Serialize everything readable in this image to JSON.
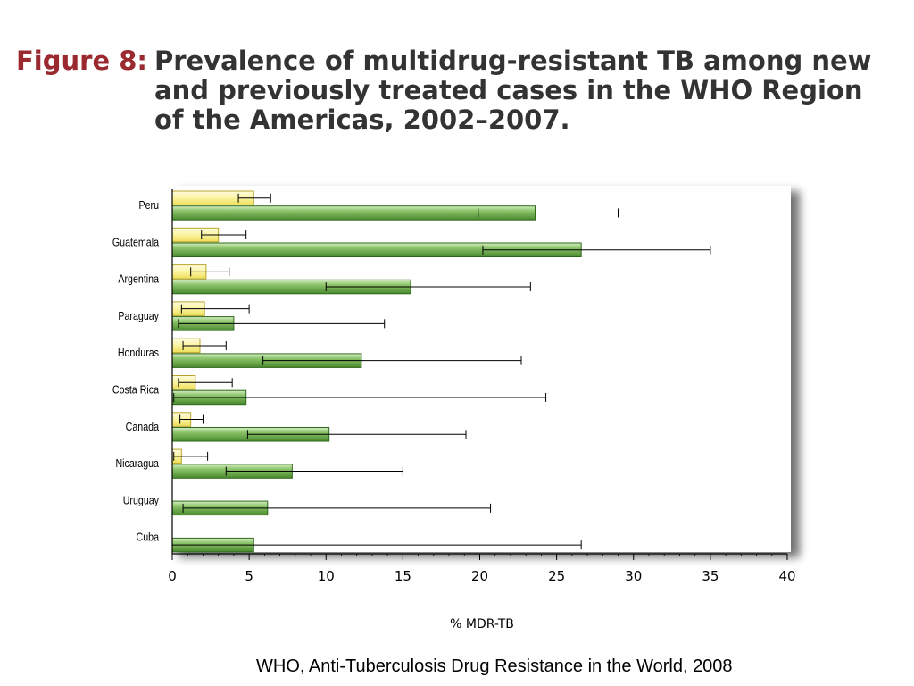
{
  "figure": {
    "label": "Figure 8:",
    "title": "Prevalence of multidrug-resistant TB among new and previously treated cases in the WHO Region of the Americas, 2002–2007."
  },
  "citation": "WHO, Anti-Tuberculosis Drug Resistance in the World, 2008",
  "colors": {
    "new_cases": "#f7ef7a",
    "previously_treated": "#5b9a3c",
    "title_label": "#9a2a30",
    "title_text": "#333333"
  },
  "chart_data": {
    "type": "bar",
    "orientation": "horizontal",
    "title": "",
    "xlabel": "% MDR-TB",
    "ylabel": "",
    "xlim": [
      0,
      40
    ],
    "xticks": [
      0,
      5,
      10,
      15,
      20,
      25,
      30,
      35,
      40
    ],
    "grid": false,
    "categories": [
      "Peru",
      "Guatemala",
      "Argentina",
      "Paraguay",
      "Honduras",
      "Costa Rica",
      "Canada",
      "Nicaragua",
      "Uruguay",
      "Cuba"
    ],
    "series": [
      {
        "key": "new",
        "color": "#f7ef7a",
        "values": [
          5.3,
          3.0,
          2.2,
          2.1,
          1.8,
          1.5,
          1.2,
          0.6,
          0.0,
          0.0
        ],
        "ci_low": [
          4.3,
          1.9,
          1.2,
          0.6,
          0.7,
          0.4,
          0.5,
          0.1,
          0.0,
          0.0
        ],
        "ci_high": [
          6.4,
          4.8,
          3.7,
          5.0,
          3.5,
          3.9,
          2.0,
          2.3,
          0.0,
          0.0
        ]
      },
      {
        "key": "previously_treated",
        "color": "#5b9a3c",
        "values": [
          23.6,
          26.6,
          15.5,
          4.0,
          12.3,
          4.8,
          10.2,
          7.8,
          6.2,
          5.3
        ],
        "ci_low": [
          19.9,
          20.2,
          10.0,
          0.4,
          5.9,
          0.1,
          4.9,
          3.5,
          0.7,
          0.0
        ],
        "ci_high": [
          29.0,
          35.0,
          23.3,
          13.8,
          22.7,
          24.3,
          19.1,
          15.0,
          20.7,
          26.6
        ]
      }
    ]
  }
}
